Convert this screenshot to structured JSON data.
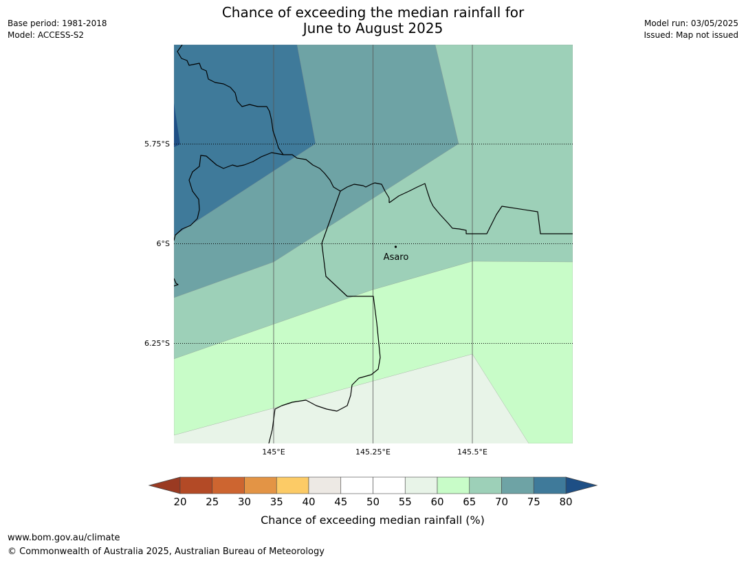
{
  "header": {
    "title_line1": "Chance of exceeding the median rainfall for",
    "title_line2": "June to August 2025",
    "base_period": "Base period: 1981-2018",
    "model": "Model: ACCESS-S2",
    "model_run": "Model run: 03/05/2025",
    "issued": "Issued: Map not issued"
  },
  "map": {
    "lat_labels": [
      "5.75°S",
      "6°S",
      "6.25°S"
    ],
    "lon_labels": [
      "145°E",
      "145.25°E",
      "145.5°E"
    ],
    "place": {
      "name": "Asaro"
    },
    "colors": {
      "bin_75_80": "#3f7a9a",
      "bin_70_75": "#6ea3a5",
      "bin_65_70": "#9dd0b8",
      "bin_60_65": "#c8fcc8",
      "bin_55_60": "#e8f4e8",
      "bin_80_plus": "#1e4f85"
    }
  },
  "colorbar": {
    "label": "Chance of exceeding median rainfall (%)",
    "ticks": [
      "20",
      "25",
      "30",
      "35",
      "40",
      "45",
      "50",
      "55",
      "60",
      "65",
      "70",
      "75",
      "80"
    ],
    "below_color": "#9a3a22",
    "above_color": "#1e4f85",
    "colors": [
      "#b34a26",
      "#cd6530",
      "#e39445",
      "#fccb66",
      "#ede9e4",
      "#ffffff",
      "#ffffff",
      "#e8f4e8",
      "#c8fcc8",
      "#9dd0b8",
      "#6ea3a5",
      "#3f7a9a"
    ]
  },
  "footer": {
    "url": "www.bom.gov.au/climate",
    "copyright": "© Commonwealth of Australia 2025, Australian Bureau of Meteorology"
  }
}
